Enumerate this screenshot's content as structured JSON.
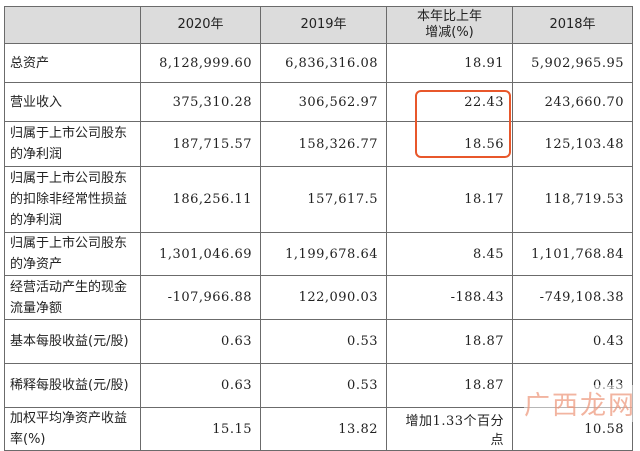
{
  "table": {
    "headers": [
      "",
      "2020年",
      "2019年",
      "本年比上年\n增减(%)",
      "2018年"
    ],
    "rows": [
      {
        "label": "总资产",
        "v2020": "8,128,999.60",
        "v2019": "6,836,316.08",
        "change": "18.91",
        "v2018": "5,902,965.95"
      },
      {
        "label": "营业收入",
        "v2020": "375,310.28",
        "v2019": "306,562.97",
        "change": "22.43",
        "v2018": "243,660.70"
      },
      {
        "label": "归属于上市公司股东的净利润",
        "v2020": "187,715.57",
        "v2019": "158,326.77",
        "change": "18.56",
        "v2018": "125,103.48"
      },
      {
        "label": "归属于上市公司股东的扣除非经常性损益的净利润",
        "v2020": "186,256.11",
        "v2019": "157,617.5",
        "change": "18.17",
        "v2018": "118,719.53"
      },
      {
        "label": "归属于上市公司股东的净资产",
        "v2020": "1,301,046.69",
        "v2019": "1,199,678.64",
        "change": "8.45",
        "v2018": "1,101,768.84"
      },
      {
        "label": "经营活动产生的现金流量净额",
        "v2020": "-107,966.88",
        "v2019": "122,090.03",
        "change": "-188.43",
        "v2018": "-749,108.38"
      },
      {
        "label": "基本每股收益(元/股)",
        "v2020": "0.63",
        "v2019": "0.53",
        "change": "18.87",
        "v2018": "0.43"
      },
      {
        "label": "稀释每股收益(元/股)",
        "v2020": "0.63",
        "v2019": "0.53",
        "change": "18.87",
        "v2018": "0.43"
      },
      {
        "label": "加权平均净资产收益率(%)",
        "v2020": "15.15",
        "v2019": "13.82",
        "change": "增加1.33个百分点",
        "v2018": "10.58"
      }
    ]
  },
  "watermark": "广西龙网",
  "colors": {
    "highlight": "#e8572b",
    "header_bg": "#dcdcdc"
  }
}
